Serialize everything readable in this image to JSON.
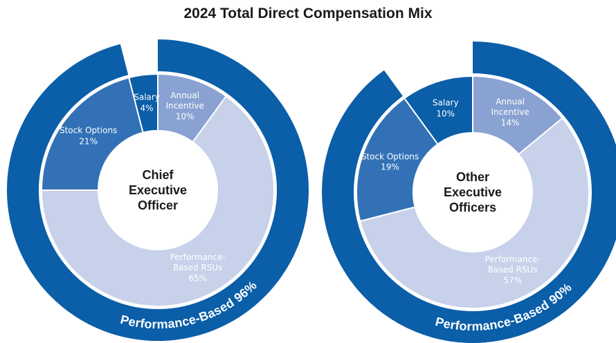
{
  "title": "2024 Total Direct Compensation Mix",
  "chart_data": [
    {
      "type": "donut",
      "center_label": "Chief Executive Officer",
      "categories": [
        "Annual Incentive",
        "Performance-Based RSUs",
        "Stock Options",
        "Salary"
      ],
      "values": [
        10,
        65,
        21,
        4
      ],
      "value_labels": [
        "10%",
        "65%",
        "21%",
        "4%"
      ],
      "colors": [
        "#8aa2d2",
        "#c7d1ea",
        "#3271b6",
        "#0b5ea8"
      ],
      "ring": {
        "label": "Performance-Based 96%",
        "value": 96,
        "color": "#0b5ea8"
      }
    },
    {
      "type": "donut",
      "center_label": "Other Executive Officers",
      "categories": [
        "Annual Incentive",
        "Performance-Based RSUs",
        "Stock Options",
        "Salary"
      ],
      "values": [
        14,
        57,
        19,
        10
      ],
      "value_labels": [
        "14%",
        "57%",
        "19%",
        "10%"
      ],
      "colors": [
        "#8aa2d2",
        "#c7d1ea",
        "#3271b6",
        "#0b5ea8"
      ],
      "ring": {
        "label": "Performance-Based 90%",
        "value": 90,
        "color": "#0b5ea8"
      }
    }
  ]
}
